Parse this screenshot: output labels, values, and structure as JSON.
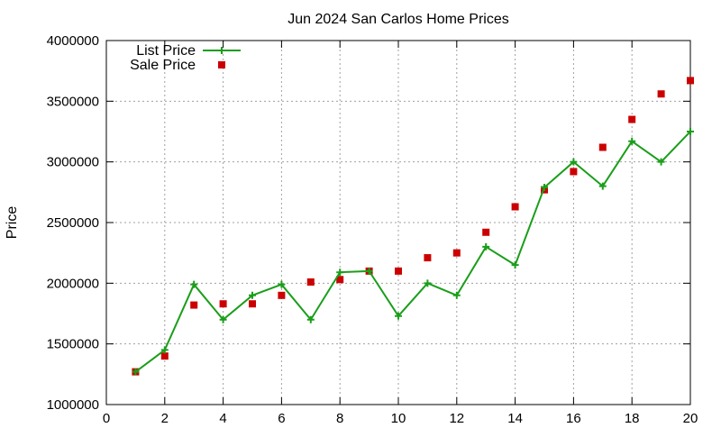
{
  "chart_data": {
    "type": "line",
    "title": "Jun 2024 San Carlos Home Prices",
    "xlabel": "",
    "ylabel": "Price",
    "xlim": [
      0,
      20
    ],
    "ylim": [
      1000000,
      4000000
    ],
    "x_ticks": [
      0,
      2,
      4,
      6,
      8,
      10,
      12,
      14,
      16,
      18,
      20
    ],
    "y_ticks": [
      1000000,
      1500000,
      2000000,
      2500000,
      3000000,
      3500000,
      4000000
    ],
    "x_tick_labels": [
      "0",
      "2",
      "4",
      "6",
      "8",
      "10",
      "12",
      "14",
      "16",
      "18",
      "20"
    ],
    "y_tick_labels": [
      "1000000",
      "1500000",
      "2000000",
      "2500000",
      "3000000",
      "3500000",
      "4000000"
    ],
    "grid": true,
    "legend_position": "top-left",
    "x": [
      1,
      2,
      3,
      4,
      5,
      6,
      7,
      8,
      9,
      10,
      11,
      12,
      13,
      14,
      15,
      16,
      17,
      18,
      19,
      20
    ],
    "series": [
      {
        "name": "List Price",
        "style": "line-with-plus-markers",
        "color": "#1a9e1a",
        "values": [
          1270000,
          1450000,
          1990000,
          1700000,
          1900000,
          1990000,
          1700000,
          2090000,
          2100000,
          1730000,
          2000000,
          1900000,
          2300000,
          2150000,
          2790000,
          3000000,
          2800000,
          3170000,
          3000000,
          3250000
        ]
      },
      {
        "name": "Sale Price",
        "style": "square-markers",
        "color": "#cc0000",
        "values": [
          1270000,
          1400000,
          1820000,
          1830000,
          1830000,
          1900000,
          2010000,
          2030000,
          2100000,
          2100000,
          2210000,
          2250000,
          2420000,
          2630000,
          2770000,
          2920000,
          3120000,
          3350000,
          3560000,
          3670000
        ]
      }
    ]
  }
}
